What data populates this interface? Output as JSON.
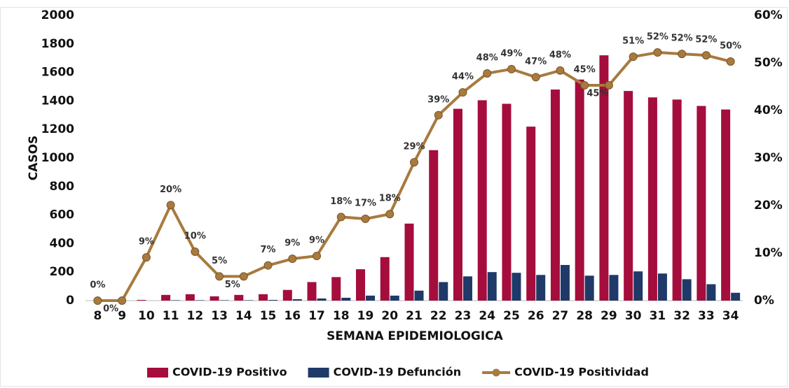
{
  "chart_data": {
    "type": "bar",
    "ylabel": "CASOS",
    "xlabel": "SEMANA EPIDEMIOLOGICA",
    "categories": [
      "8",
      "9",
      "10",
      "11",
      "12",
      "13",
      "14",
      "15",
      "16",
      "17",
      "18",
      "19",
      "20",
      "21",
      "22",
      "23",
      "24",
      "25",
      "26",
      "27",
      "28",
      "29",
      "30",
      "31",
      "32",
      "33",
      "34"
    ],
    "ylim": [
      0,
      2000
    ],
    "yticks": [
      0,
      200,
      400,
      600,
      800,
      1000,
      1200,
      1400,
      1600,
      1800,
      2000
    ],
    "y2lim": [
      0,
      60
    ],
    "y2ticks": [
      {
        "value": 0,
        "label": "0%"
      },
      {
        "value": 10,
        "label": "10%"
      },
      {
        "value": 20,
        "label": "20%"
      },
      {
        "value": 30,
        "label": "30%"
      },
      {
        "value": 40,
        "label": "40%"
      },
      {
        "value": 50,
        "label": "50%"
      },
      {
        "value": 60,
        "label": "60%"
      }
    ],
    "grid": false,
    "legend": "bottom",
    "series": [
      {
        "name": "COVID-19 Positivo",
        "type": "bar",
        "color": "#a50d3c",
        "values": [
          0,
          0,
          5,
          40,
          45,
          30,
          40,
          45,
          75,
          130,
          165,
          220,
          305,
          540,
          1055,
          1345,
          1405,
          1380,
          1220,
          1480,
          1550,
          1720,
          1470,
          1425,
          1410,
          1365,
          1340
        ]
      },
      {
        "name": "COVID-19 Defunción",
        "type": "bar",
        "color": "#1f3a68",
        "values": [
          0,
          0,
          0,
          3,
          3,
          3,
          3,
          5,
          10,
          15,
          20,
          35,
          35,
          70,
          130,
          170,
          200,
          195,
          180,
          250,
          175,
          180,
          205,
          190,
          150,
          115,
          55
        ]
      },
      {
        "name": "COVID-19 Positividad",
        "type": "line",
        "axis": "y2",
        "color": "#a87a3e",
        "values": [
          0,
          0,
          9.1,
          20.1,
          10.3,
          5.1,
          5.1,
          7.4,
          8.8,
          9.4,
          17.6,
          17.2,
          18.2,
          29.1,
          39,
          43.8,
          47.8,
          48.7,
          47,
          48.4,
          45.3,
          45.3,
          51.3,
          52.2,
          51.9,
          51.6,
          50.3
        ],
        "value_labels": [
          "0%",
          "0%",
          "9%",
          "20%",
          "10%",
          "5%",
          "5%",
          "7%",
          "9%",
          "9%",
          "18%",
          "17%",
          "18%",
          "29%",
          "39%",
          "44%",
          "48%",
          "49%",
          "47%",
          "48%",
          "45%",
          "45%",
          "51%",
          "52%",
          "52%",
          "52%",
          "50%"
        ]
      }
    ]
  }
}
